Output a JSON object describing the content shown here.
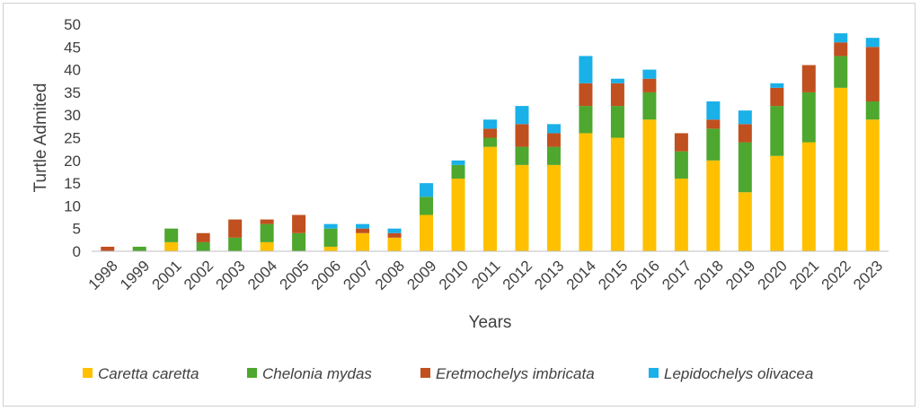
{
  "chart_data": {
    "type": "bar",
    "stacked": true,
    "categories": [
      "1998",
      "1999",
      "2001",
      "2002",
      "2003",
      "2004",
      "2005",
      "2006",
      "2007",
      "2008",
      "2009",
      "2010",
      "2011",
      "2012",
      "2013",
      "2014",
      "2015",
      "2016",
      "2017",
      "2018",
      "2019",
      "2020",
      "2021",
      "2022",
      "2023"
    ],
    "series": [
      {
        "name": "Caretta caretta",
        "color": "#FFC000",
        "values": [
          0,
          0,
          2,
          0,
          0,
          2,
          0,
          1,
          4,
          3,
          8,
          16,
          23,
          19,
          19,
          26,
          25,
          29,
          16,
          20,
          13,
          21,
          24,
          36,
          29
        ]
      },
      {
        "name": "Chelonia mydas",
        "color": "#4EA72E",
        "values": [
          0,
          1,
          3,
          2,
          3,
          4,
          4,
          4,
          0,
          0,
          4,
          3,
          2,
          4,
          4,
          6,
          7,
          6,
          6,
          7,
          11,
          11,
          11,
          7,
          4
        ]
      },
      {
        "name": "Eretmochelys imbricata",
        "color": "#C0501F",
        "values": [
          1,
          0,
          0,
          2,
          4,
          1,
          4,
          0,
          1,
          1,
          0,
          0,
          2,
          5,
          3,
          5,
          5,
          3,
          4,
          2,
          4,
          4,
          6,
          3,
          12
        ]
      },
      {
        "name": "Lepidochelys olivacea",
        "color": "#1AB0E8",
        "values": [
          0,
          0,
          0,
          0,
          0,
          0,
          0,
          1,
          1,
          1,
          3,
          1,
          2,
          4,
          2,
          6,
          1,
          2,
          0,
          4,
          3,
          1,
          0,
          2,
          2
        ]
      }
    ],
    "xlabel": "Years",
    "ylabel": "Turtle Admited",
    "ylim": [
      0,
      50
    ],
    "yticks": [
      "0",
      "5",
      "10",
      "15",
      "20",
      "25",
      "30",
      "35",
      "40",
      "45",
      "50"
    ],
    "grid": false,
    "legend_position": "bottom"
  }
}
